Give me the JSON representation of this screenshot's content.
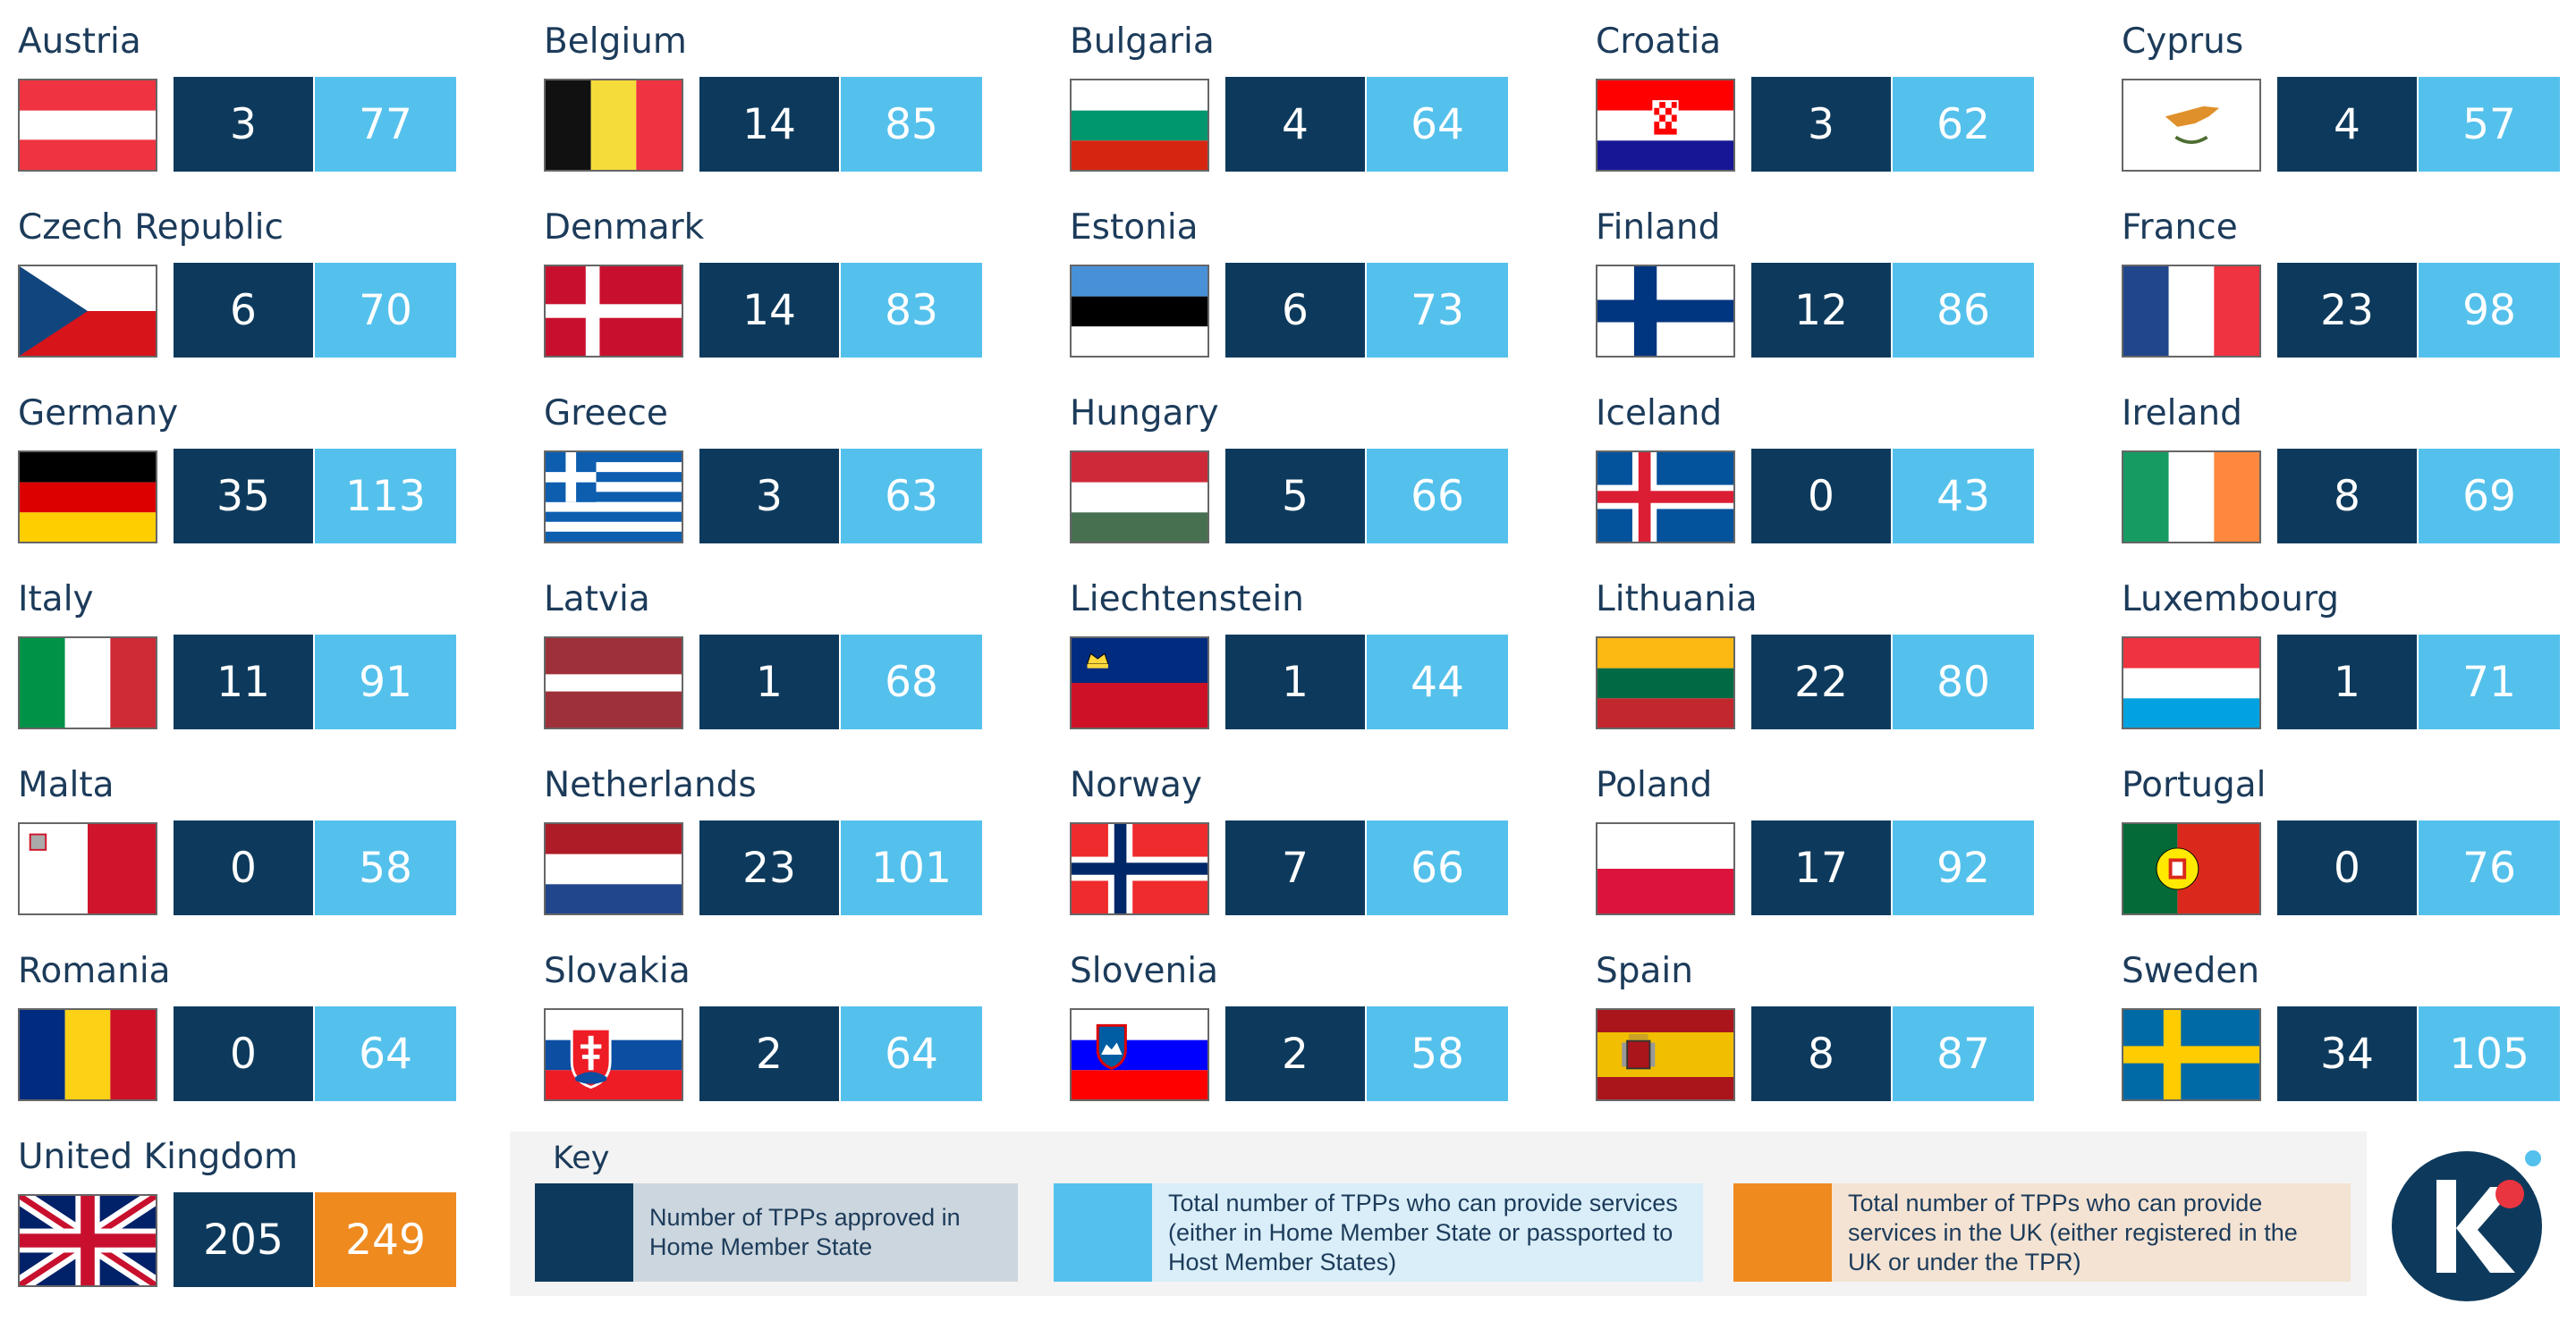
{
  "chart_data": {
    "type": "table",
    "columns": [
      "Country",
      "Number of TPPs approved in Home Member State",
      "Total number of TPPs who can provide services"
    ],
    "rows": [
      {
        "country": "Austria",
        "home": 3,
        "total": 77
      },
      {
        "country": "Belgium",
        "home": 14,
        "total": 85
      },
      {
        "country": "Bulgaria",
        "home": 4,
        "total": 64
      },
      {
        "country": "Croatia",
        "home": 3,
        "total": 62
      },
      {
        "country": "Cyprus",
        "home": 4,
        "total": 57
      },
      {
        "country": "Czech Republic",
        "home": 6,
        "total": 70
      },
      {
        "country": "Denmark",
        "home": 14,
        "total": 83
      },
      {
        "country": "Estonia",
        "home": 6,
        "total": 73
      },
      {
        "country": "Finland",
        "home": 12,
        "total": 86
      },
      {
        "country": "France",
        "home": 23,
        "total": 98
      },
      {
        "country": "Germany",
        "home": 35,
        "total": 113
      },
      {
        "country": "Greece",
        "home": 3,
        "total": 63
      },
      {
        "country": "Hungary",
        "home": 5,
        "total": 66
      },
      {
        "country": "Iceland",
        "home": 0,
        "total": 43
      },
      {
        "country": "Ireland",
        "home": 8,
        "total": 69
      },
      {
        "country": "Italy",
        "home": 11,
        "total": 91
      },
      {
        "country": "Latvia",
        "home": 1,
        "total": 68
      },
      {
        "country": "Liechtenstein",
        "home": 1,
        "total": 44
      },
      {
        "country": "Lithuania",
        "home": 22,
        "total": 80
      },
      {
        "country": "Luxembourg",
        "home": 1,
        "total": 71
      },
      {
        "country": "Malta",
        "home": 0,
        "total": 58
      },
      {
        "country": "Netherlands",
        "home": 23,
        "total": 101
      },
      {
        "country": "Norway",
        "home": 7,
        "total": 66
      },
      {
        "country": "Poland",
        "home": 17,
        "total": 92
      },
      {
        "country": "Portugal",
        "home": 0,
        "total": 76
      },
      {
        "country": "Romania",
        "home": 0,
        "total": 64
      },
      {
        "country": "Slovakia",
        "home": 2,
        "total": 64
      },
      {
        "country": "Slovenia",
        "home": 2,
        "total": 58
      },
      {
        "country": "Spain",
        "home": 8,
        "total": 87
      },
      {
        "country": "Sweden",
        "home": 34,
        "total": 105
      },
      {
        "country": "United Kingdom",
        "home": 205,
        "total": 249
      }
    ]
  },
  "key": {
    "title": "Key",
    "items": [
      {
        "label": "Number of TPPs approved in Home Member State",
        "color": "#0d3a5c",
        "bg": "#ccd6de"
      },
      {
        "label": "Total number of TPPs who can provide services (either in Home Member State or passported to Host Member States)",
        "color": "#54c1ec",
        "bg": "#d9eef8"
      },
      {
        "label": "Total number of TPPs who can provide services in the UK (either registered in the UK or under the TPR)",
        "color": "#ef8a1f",
        "bg": "#f4e3d3"
      }
    ]
  },
  "colors": {
    "home": "#0d3a5c",
    "total": "#54c1ec",
    "uk_total": "#ef8a1f",
    "text": "#1c3b5a"
  },
  "logo": {
    "icon": "k-logo-icon",
    "colors": {
      "circle": "#0d3a5c",
      "dot": "#e8353f",
      "small_dot": "#54c1ec"
    }
  }
}
